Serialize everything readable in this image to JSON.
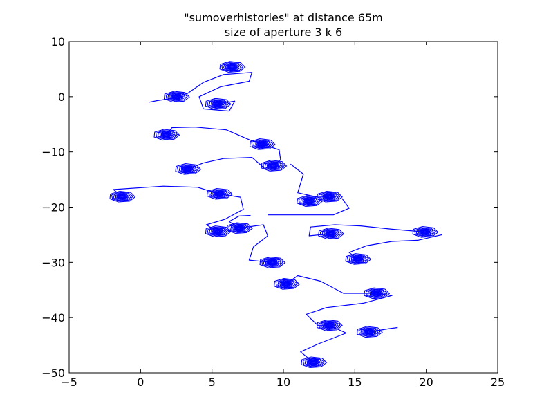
{
  "chart_data": {
    "type": "line",
    "title": "\"sumoverhistories\" at distance 65m",
    "subtitle": "size of aperture 3 k 6",
    "xlabel": "",
    "ylabel": "",
    "xlim": [
      -5,
      25
    ],
    "ylim": [
      -50,
      10
    ],
    "xticks": [
      -5,
      0,
      5,
      10,
      15,
      20,
      25
    ],
    "yticks": [
      10,
      0,
      -10,
      -20,
      -30,
      -40,
      -50
    ],
    "xtick_labels": [
      "−5",
      "0",
      "5",
      "10",
      "15",
      "20",
      "25"
    ],
    "ytick_labels": [
      "10",
      "0",
      "−10",
      "−20",
      "−30",
      "−40",
      "−50"
    ],
    "grid": false,
    "line_color": "#0000ff",
    "spiral_centers": [
      [
        6.4,
        5.4
      ],
      [
        2.5,
        0.0
      ],
      [
        5.4,
        -1.3
      ],
      [
        1.8,
        -6.9
      ],
      [
        8.5,
        -8.6
      ],
      [
        3.3,
        -13.1
      ],
      [
        9.3,
        -12.5
      ],
      [
        -1.3,
        -18.1
      ],
      [
        5.5,
        -17.6
      ],
      [
        11.8,
        -18.9
      ],
      [
        13.2,
        -18.1
      ],
      [
        5.4,
        -24.4
      ],
      [
        6.9,
        -23.8
      ],
      [
        13.3,
        -24.8
      ],
      [
        19.9,
        -24.5
      ],
      [
        9.2,
        -30.0
      ],
      [
        15.2,
        -29.4
      ],
      [
        10.2,
        -33.9
      ],
      [
        16.5,
        -35.6
      ],
      [
        13.2,
        -41.4
      ],
      [
        16.0,
        -42.6
      ],
      [
        12.1,
        -48.1
      ]
    ],
    "series": [
      {
        "points": [
          [
            0.6,
            -1.0
          ],
          [
            1.2,
            -0.7
          ],
          [
            2.0,
            -0.4
          ],
          [
            3.3,
            0.6
          ],
          [
            4.4,
            2.6
          ],
          [
            5.8,
            4.0
          ],
          [
            7.8,
            4.4
          ],
          [
            7.6,
            2.8
          ],
          [
            5.6,
            1.8
          ],
          [
            4.1,
            0.0
          ],
          [
            4.4,
            -2.2
          ],
          [
            6.2,
            -2.6
          ],
          [
            6.6,
            -0.8
          ],
          [
            5.4,
            -1.3
          ]
        ]
      },
      {
        "points": [
          [
            1.8,
            -6.9
          ],
          [
            2.2,
            -5.6
          ],
          [
            3.8,
            -5.5
          ],
          [
            6.0,
            -6.0
          ],
          [
            7.8,
            -8.0
          ],
          [
            9.7,
            -9.6
          ],
          [
            9.8,
            -11.4
          ],
          [
            9.3,
            -12.5
          ]
        ]
      },
      {
        "points": [
          [
            10.5,
            -12.2
          ],
          [
            11.4,
            -14.0
          ],
          [
            11.0,
            -17.4
          ],
          [
            12.4,
            -18.2
          ],
          [
            13.2,
            -18.1
          ]
        ]
      },
      {
        "points": [
          [
            3.3,
            -13.1
          ],
          [
            4.4,
            -12.0
          ],
          [
            5.8,
            -11.2
          ],
          [
            7.8,
            -11.0
          ],
          [
            8.6,
            -12.8
          ]
        ]
      },
      {
        "points": [
          [
            -1.3,
            -18.1
          ],
          [
            -1.9,
            -16.8
          ],
          [
            1.6,
            -16.2
          ],
          [
            4.0,
            -16.4
          ],
          [
            5.5,
            -17.6
          ]
        ]
      },
      {
        "points": [
          [
            5.5,
            -17.6
          ],
          [
            7.0,
            -18.2
          ],
          [
            7.2,
            -20.4
          ],
          [
            5.9,
            -22.2
          ],
          [
            4.6,
            -23.2
          ],
          [
            5.4,
            -24.4
          ]
        ]
      },
      {
        "points": [
          [
            7.7,
            -21.5
          ],
          [
            6.9,
            -21.6
          ],
          [
            6.2,
            -22.6
          ],
          [
            6.9,
            -23.8
          ]
        ]
      },
      {
        "points": [
          [
            6.9,
            -23.8
          ],
          [
            8.6,
            -23.2
          ],
          [
            8.9,
            -25.2
          ],
          [
            7.9,
            -27.2
          ],
          [
            7.6,
            -29.6
          ],
          [
            9.2,
            -30.0
          ]
        ]
      },
      {
        "points": [
          [
            8.9,
            -21.4
          ],
          [
            11.4,
            -21.4
          ],
          [
            13.5,
            -21.4
          ],
          [
            14.6,
            -20.2
          ],
          [
            14.1,
            -18.4
          ]
        ]
      },
      {
        "points": [
          [
            13.3,
            -24.8
          ],
          [
            11.8,
            -25.2
          ],
          [
            11.9,
            -23.6
          ],
          [
            13.6,
            -23.2
          ],
          [
            15.4,
            -23.4
          ],
          [
            17.6,
            -24.0
          ],
          [
            19.9,
            -24.5
          ]
        ]
      },
      {
        "points": [
          [
            15.2,
            -29.4
          ],
          [
            14.6,
            -28.2
          ],
          [
            15.8,
            -27.0
          ],
          [
            17.6,
            -26.2
          ],
          [
            19.4,
            -26.0
          ],
          [
            21.1,
            -25.0
          ]
        ]
      },
      {
        "points": [
          [
            10.2,
            -33.9
          ],
          [
            11.0,
            -32.4
          ],
          [
            12.6,
            -33.4
          ],
          [
            14.2,
            -35.6
          ],
          [
            16.5,
            -35.6
          ]
        ]
      },
      {
        "points": [
          [
            16.5,
            -35.6
          ],
          [
            17.6,
            -36.0
          ],
          [
            15.6,
            -37.4
          ],
          [
            13.0,
            -38.2
          ],
          [
            11.6,
            -39.4
          ],
          [
            12.4,
            -41.4
          ],
          [
            13.2,
            -41.4
          ]
        ]
      },
      {
        "points": [
          [
            13.2,
            -41.4
          ],
          [
            14.4,
            -42.8
          ],
          [
            12.4,
            -44.8
          ],
          [
            11.2,
            -46.2
          ],
          [
            12.1,
            -48.1
          ]
        ]
      },
      {
        "points": [
          [
            16.0,
            -42.6
          ],
          [
            17.4,
            -42.0
          ],
          [
            18.0,
            -41.8
          ]
        ]
      }
    ]
  }
}
